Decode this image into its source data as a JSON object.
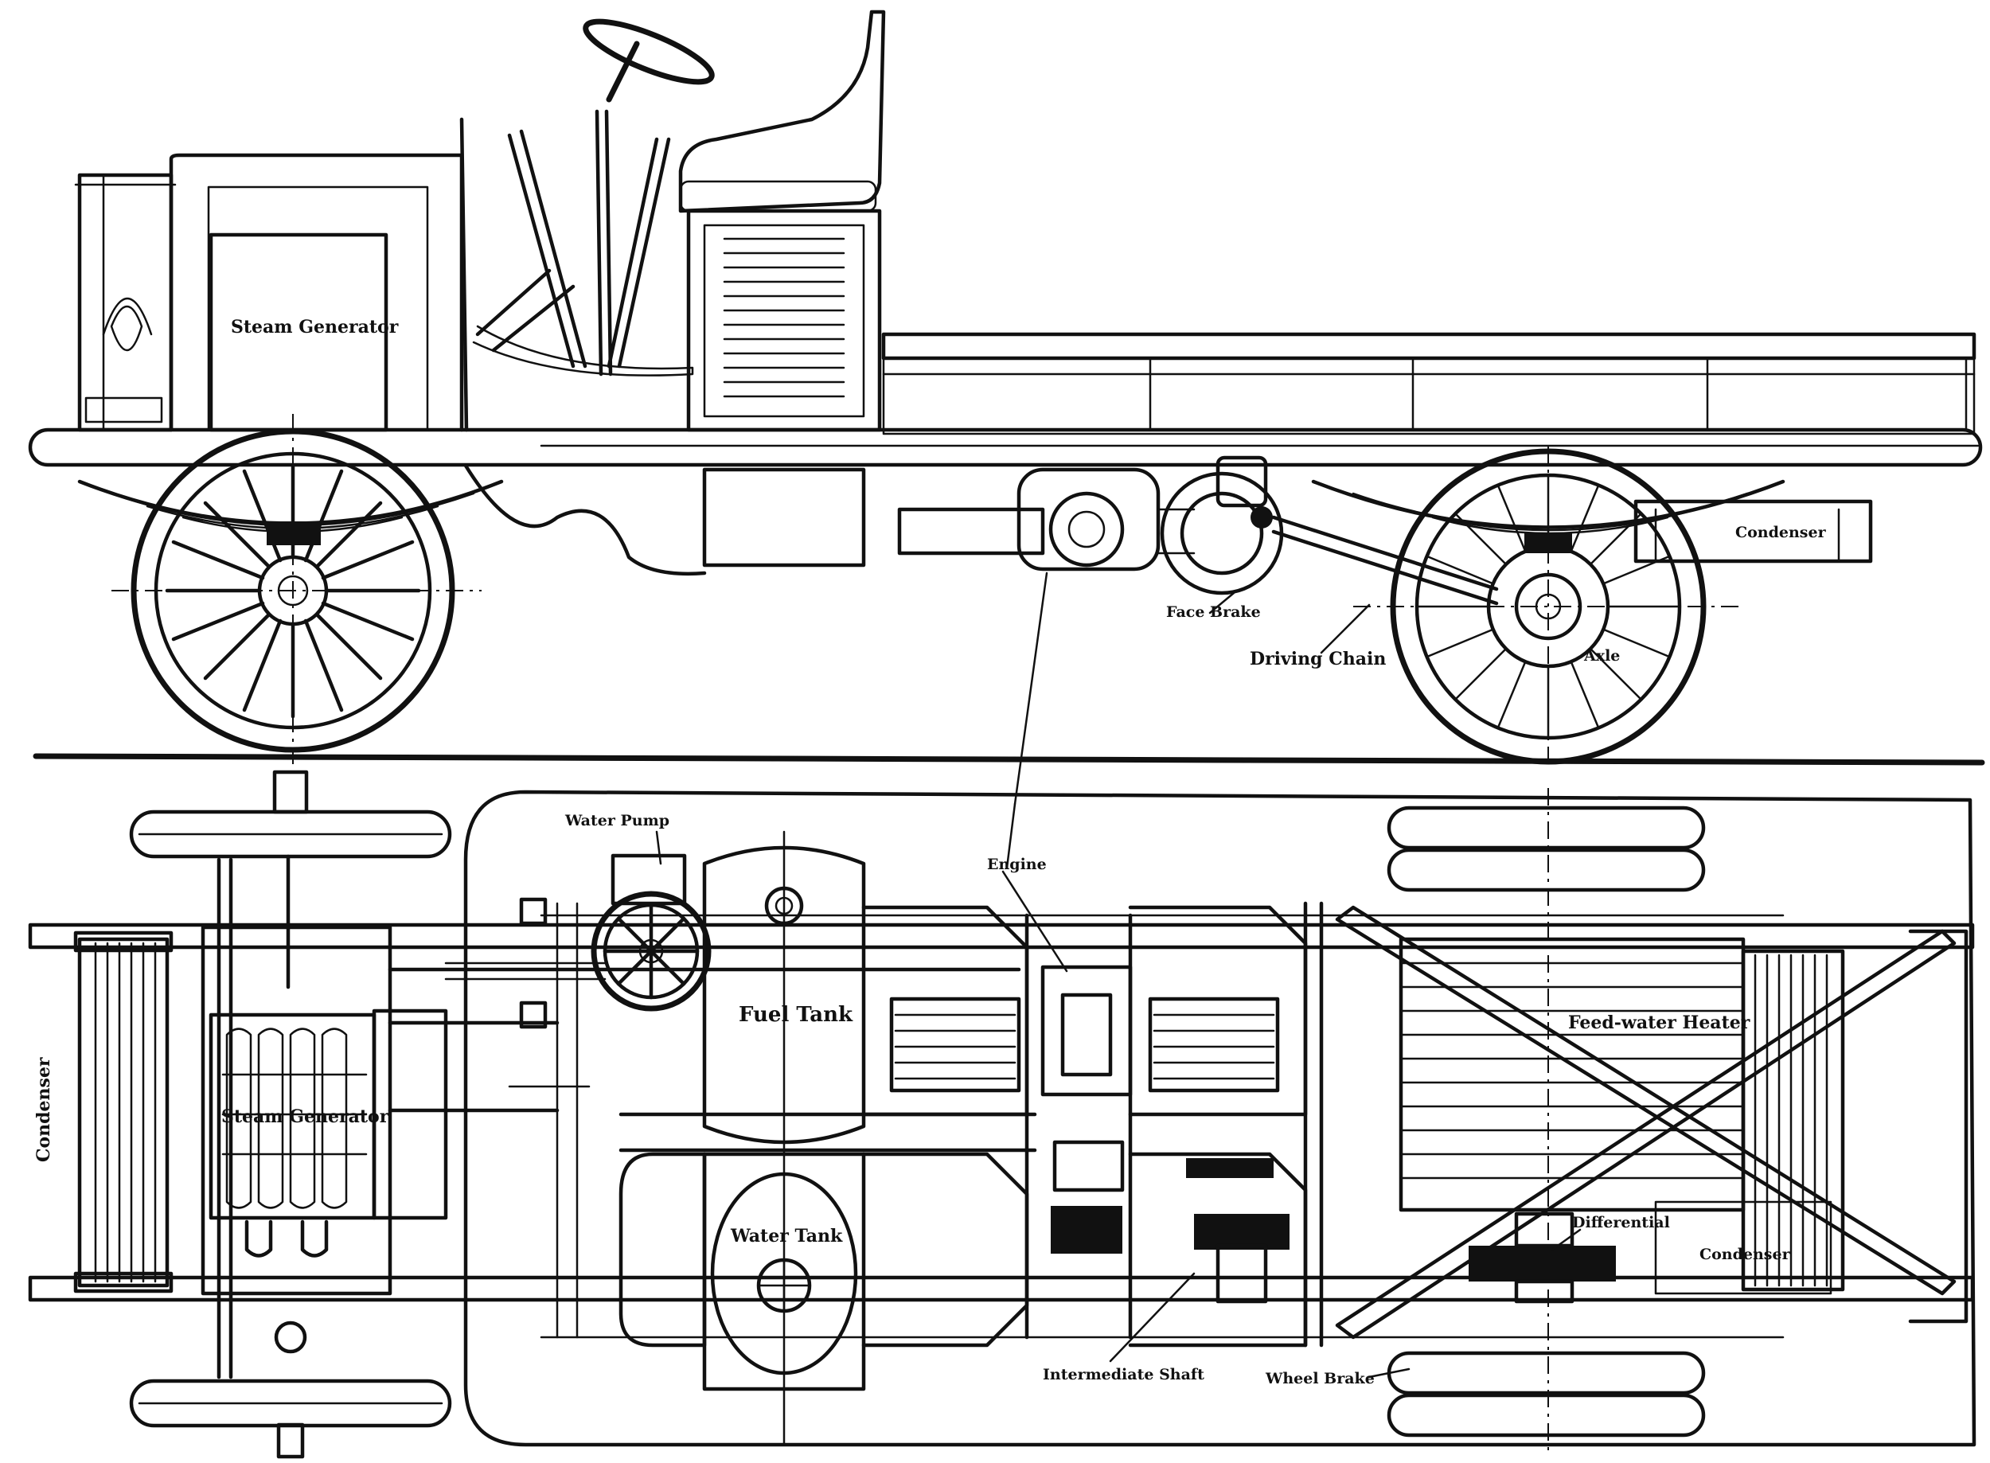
{
  "labels": {
    "steam_generator_side": "Steam Generator",
    "face_brake": "Face Brake",
    "driving_chain": "Driving Chain",
    "axle": "Axle",
    "condenser_side": "Condenser",
    "water_pump": "Water Pump",
    "engine": "Engine",
    "fuel_tank": "Fuel Tank",
    "water_tank": "Water Tank",
    "feed_water_heater": "Feed-water Heater",
    "differential": "Differential",
    "condenser_plan_right": "Condenser",
    "condenser_plan_left": "Condenser",
    "steam_generator_plan": "Steam Generator",
    "intermediate_shaft": "Intermediate Shaft",
    "wheel_brake": "Wheel Brake"
  }
}
